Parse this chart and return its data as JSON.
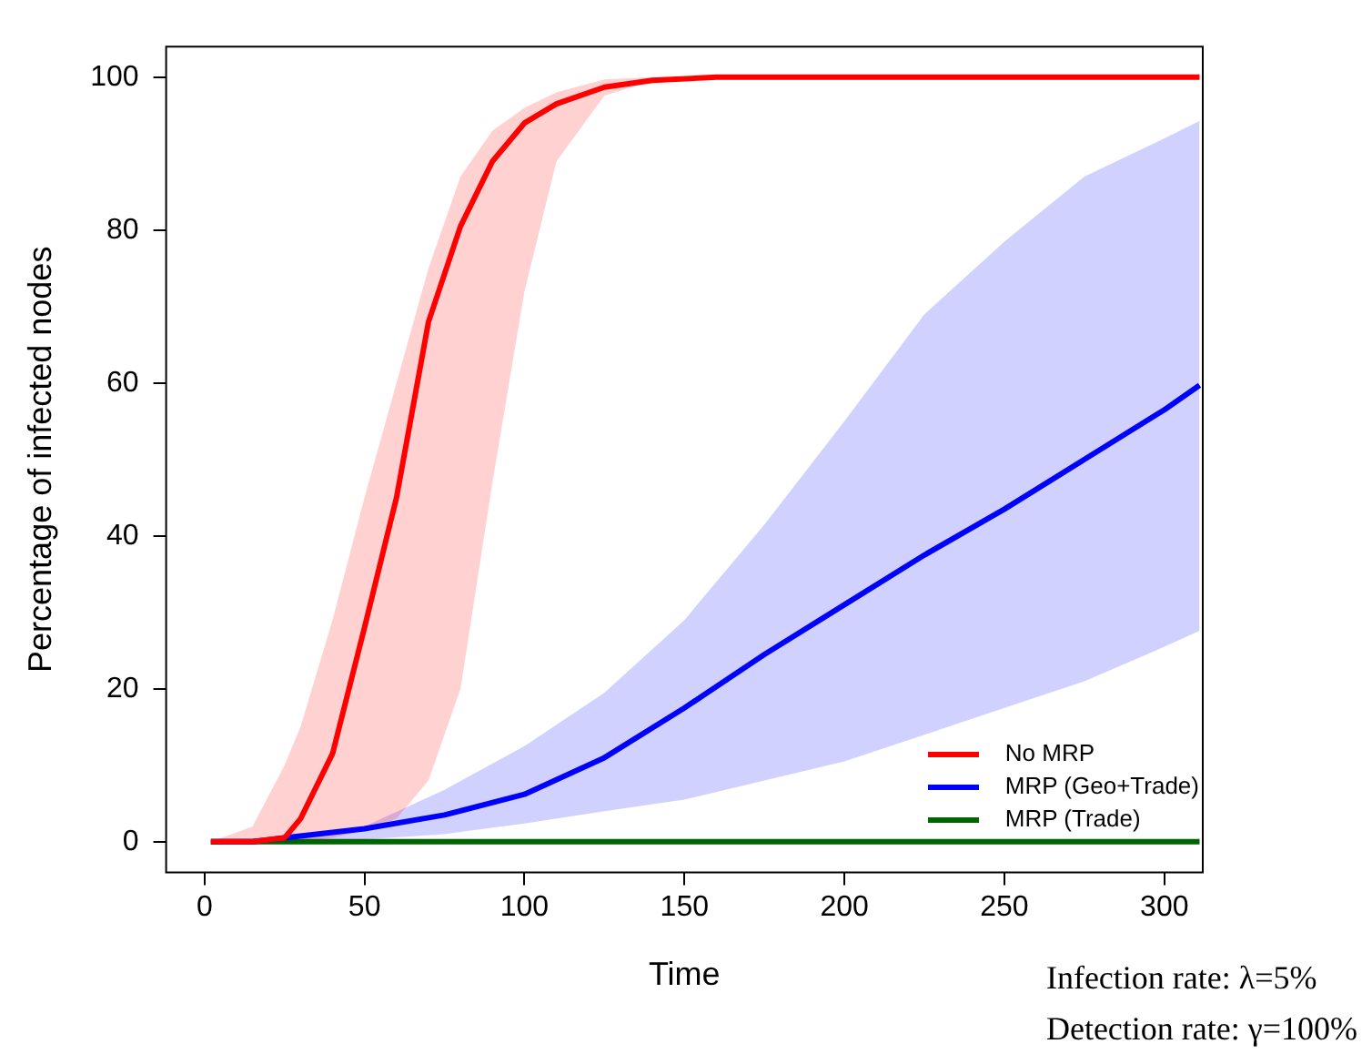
{
  "chart_data": {
    "type": "line",
    "xlabel": "Time",
    "ylabel": "Percentage of infected nodes",
    "xlim": [
      -12,
      312
    ],
    "ylim": [
      -4,
      104
    ],
    "xticks": [
      0,
      50,
      100,
      150,
      200,
      250,
      300
    ],
    "yticks": [
      0,
      20,
      40,
      60,
      80,
      100
    ],
    "grid": false,
    "legend": "bottom right",
    "marker": "none",
    "line_style": "solid",
    "annotations": [
      "Infection rate: λ=5%",
      "Detection rate: γ=100%"
    ],
    "series": [
      {
        "name": "No MRP",
        "color": "#ff0000",
        "x": [
          2,
          15,
          25,
          30,
          40,
          50,
          60,
          70,
          80,
          90,
          100,
          110,
          125,
          140,
          160,
          200,
          250,
          311
        ],
        "values": [
          0,
          0,
          0.5,
          3,
          11.5,
          28,
          45,
          68,
          80.5,
          89,
          94,
          96.5,
          98.7,
          99.6,
          100,
          100,
          100,
          100
        ],
        "lower": [
          0,
          0,
          0,
          0,
          0.5,
          1.5,
          3,
          8,
          20,
          47,
          72,
          89,
          97.6,
          99.5,
          100,
          100,
          100,
          100
        ],
        "upper": [
          0,
          2,
          10,
          15,
          29,
          45,
          60,
          75,
          87,
          93,
          96,
          98,
          99.7,
          100,
          100,
          100,
          100,
          100
        ]
      },
      {
        "name": "MRP (Geo+Trade)",
        "color": "#0000ff",
        "x": [
          2,
          15,
          25,
          50,
          75,
          100,
          125,
          150,
          175,
          200,
          225,
          250,
          275,
          300,
          311
        ],
        "values": [
          0,
          0,
          0.5,
          1.7,
          3.5,
          6.2,
          11,
          17.5,
          24.5,
          31,
          37.5,
          43.5,
          50,
          56.5,
          59.7
        ],
        "lower": [
          0,
          0,
          0,
          0.3,
          1,
          2.4,
          4,
          5.5,
          8,
          10.5,
          14,
          17.5,
          21,
          25.5,
          27.6
        ],
        "upper": [
          0,
          0,
          0,
          2,
          6.8,
          12.5,
          19.5,
          29,
          41.5,
          55,
          69,
          78.5,
          87,
          92,
          94.3
        ]
      },
      {
        "name": "MRP (Trade)",
        "color": "#006400",
        "x": [
          2,
          311
        ],
        "values": [
          0,
          0
        ]
      }
    ]
  }
}
